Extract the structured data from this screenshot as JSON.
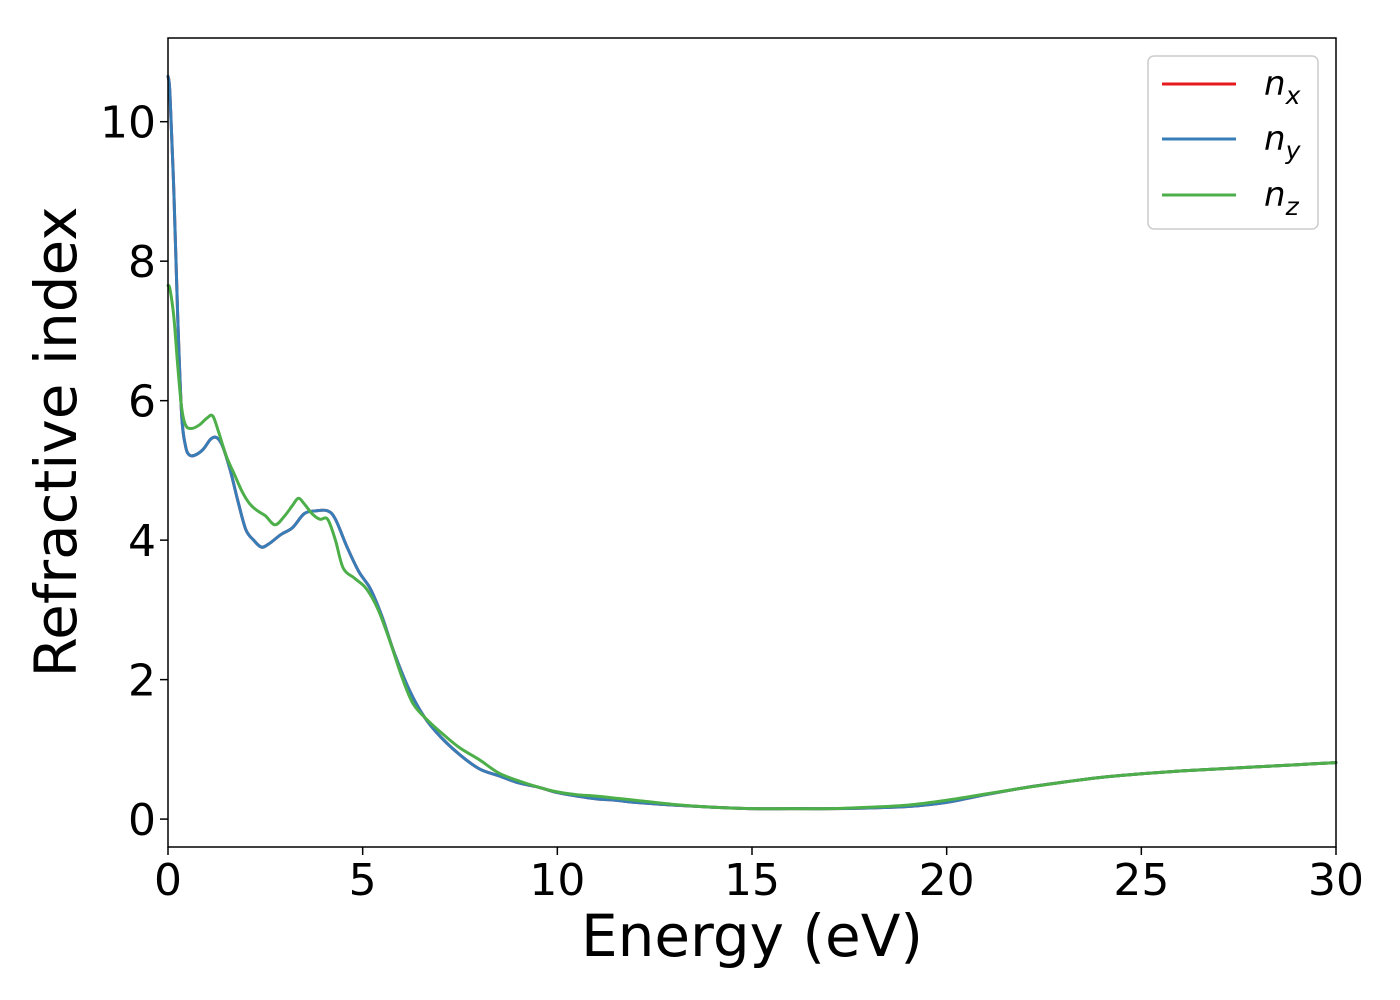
{
  "chart_data": {
    "type": "line",
    "title": "",
    "xlabel": "Energy (eV)",
    "ylabel": "Refractive index",
    "xlim": [
      0,
      30
    ],
    "ylim": [
      -0.4,
      11.2
    ],
    "xticks": [
      0,
      5,
      10,
      15,
      20,
      25,
      30
    ],
    "xtick_labels": [
      "0",
      "5",
      "10",
      "15",
      "20",
      "25",
      "30"
    ],
    "yticks": [
      0,
      2,
      4,
      6,
      8,
      10
    ],
    "ytick_labels": [
      "0",
      "2",
      "4",
      "6",
      "8",
      "10"
    ],
    "grid": false,
    "legend_position": "top-right",
    "series": [
      {
        "name": "n_x",
        "legend_base": "n",
        "legend_sub": "x",
        "color": "#e41a1c",
        "x": [
          0,
          0.05,
          0.15,
          0.25,
          0.35,
          0.45,
          0.55,
          0.7,
          0.9,
          1.1,
          1.25,
          1.4,
          1.6,
          1.8,
          2.0,
          2.2,
          2.4,
          2.6,
          2.9,
          3.2,
          3.5,
          3.8,
          4.1,
          4.3,
          4.6,
          4.9,
          5.2,
          5.5,
          5.8,
          6.2,
          6.6,
          7.0,
          7.5,
          8.0,
          8.5,
          9.0,
          9.5,
          10.0,
          10.5,
          11.0,
          11.5,
          12.0,
          13.0,
          14.0,
          15.0,
          16.0,
          17.0,
          18.0,
          19.0,
          20.0,
          21.0,
          22.0,
          23.0,
          24.0,
          25.0,
          26.0,
          27.0,
          28.0,
          29.0,
          30.0
        ],
        "y": [
          10.65,
          10.4,
          9.0,
          7.2,
          5.8,
          5.35,
          5.22,
          5.22,
          5.3,
          5.45,
          5.47,
          5.35,
          5.0,
          4.55,
          4.15,
          4.0,
          3.9,
          3.95,
          4.08,
          4.18,
          4.38,
          4.42,
          4.42,
          4.3,
          3.9,
          3.55,
          3.3,
          2.9,
          2.4,
          1.85,
          1.45,
          1.18,
          0.92,
          0.72,
          0.62,
          0.52,
          0.46,
          0.38,
          0.33,
          0.29,
          0.27,
          0.24,
          0.2,
          0.17,
          0.15,
          0.15,
          0.15,
          0.16,
          0.18,
          0.24,
          0.35,
          0.45,
          0.53,
          0.6,
          0.65,
          0.69,
          0.72,
          0.75,
          0.78,
          0.81
        ]
      },
      {
        "name": "n_y",
        "legend_base": "n",
        "legend_sub": "y",
        "color": "#377eb8",
        "x": [
          0,
          0.05,
          0.15,
          0.25,
          0.35,
          0.45,
          0.55,
          0.7,
          0.9,
          1.1,
          1.25,
          1.4,
          1.6,
          1.8,
          2.0,
          2.2,
          2.4,
          2.6,
          2.9,
          3.2,
          3.5,
          3.8,
          4.1,
          4.3,
          4.6,
          4.9,
          5.2,
          5.5,
          5.8,
          6.2,
          6.6,
          7.0,
          7.5,
          8.0,
          8.5,
          9.0,
          9.5,
          10.0,
          10.5,
          11.0,
          11.5,
          12.0,
          13.0,
          14.0,
          15.0,
          16.0,
          17.0,
          18.0,
          19.0,
          20.0,
          21.0,
          22.0,
          23.0,
          24.0,
          25.0,
          26.0,
          27.0,
          28.0,
          29.0,
          30.0
        ],
        "y": [
          10.65,
          10.4,
          9.0,
          7.2,
          5.8,
          5.35,
          5.22,
          5.22,
          5.3,
          5.45,
          5.47,
          5.35,
          5.0,
          4.55,
          4.15,
          4.0,
          3.9,
          3.95,
          4.08,
          4.18,
          4.38,
          4.42,
          4.42,
          4.3,
          3.9,
          3.55,
          3.3,
          2.9,
          2.4,
          1.85,
          1.45,
          1.18,
          0.92,
          0.72,
          0.62,
          0.52,
          0.46,
          0.38,
          0.33,
          0.29,
          0.27,
          0.24,
          0.2,
          0.17,
          0.15,
          0.15,
          0.15,
          0.16,
          0.18,
          0.24,
          0.35,
          0.45,
          0.53,
          0.6,
          0.65,
          0.69,
          0.72,
          0.75,
          0.78,
          0.81
        ]
      },
      {
        "name": "n_z",
        "legend_base": "n",
        "legend_sub": "z",
        "color": "#4daf4a",
        "x": [
          0,
          0.05,
          0.15,
          0.25,
          0.35,
          0.45,
          0.6,
          0.8,
          1.0,
          1.15,
          1.3,
          1.5,
          1.7,
          1.9,
          2.1,
          2.3,
          2.5,
          2.75,
          3.0,
          3.2,
          3.35,
          3.5,
          3.7,
          3.9,
          4.1,
          4.3,
          4.5,
          4.8,
          5.1,
          5.4,
          5.7,
          6.0,
          6.3,
          6.7,
          7.1,
          7.5,
          8.0,
          8.5,
          9.0,
          9.5,
          10.0,
          10.5,
          11.0,
          11.5,
          12.0,
          13.0,
          14.0,
          15.0,
          16.0,
          17.0,
          18.0,
          19.0,
          20.0,
          21.0,
          22.0,
          23.0,
          24.0,
          25.0,
          26.0,
          27.0,
          28.0,
          29.0,
          30.0
        ],
        "y": [
          7.65,
          7.6,
          7.2,
          6.5,
          5.9,
          5.65,
          5.6,
          5.65,
          5.75,
          5.78,
          5.55,
          5.2,
          4.95,
          4.7,
          4.52,
          4.42,
          4.35,
          4.22,
          4.35,
          4.5,
          4.6,
          4.52,
          4.38,
          4.3,
          4.3,
          4.0,
          3.6,
          3.45,
          3.3,
          3.0,
          2.55,
          2.05,
          1.65,
          1.4,
          1.2,
          1.02,
          0.85,
          0.66,
          0.55,
          0.46,
          0.39,
          0.35,
          0.33,
          0.3,
          0.27,
          0.21,
          0.17,
          0.15,
          0.15,
          0.15,
          0.17,
          0.2,
          0.27,
          0.36,
          0.45,
          0.53,
          0.6,
          0.65,
          0.69,
          0.72,
          0.75,
          0.78,
          0.81
        ]
      }
    ]
  }
}
